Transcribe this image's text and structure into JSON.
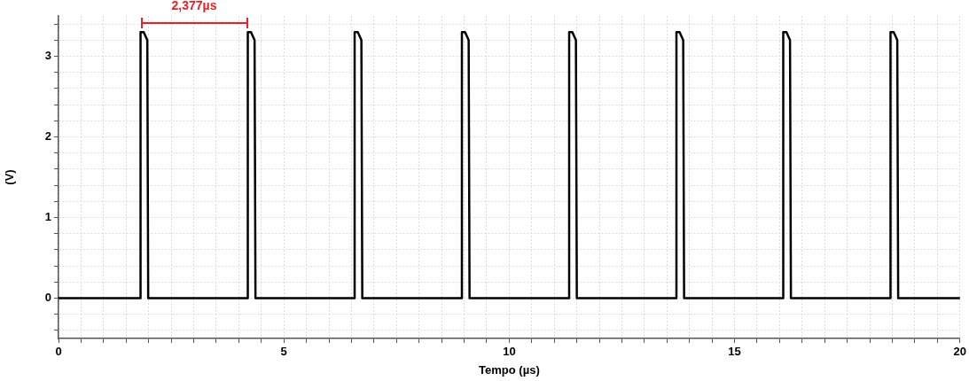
{
  "chart_data": {
    "type": "line",
    "xlabel": "Tempo (µs)",
    "ylabel": "(V)",
    "x": [
      0,
      1.82,
      1.82,
      1.89,
      1.97,
      1.99,
      4.2,
      4.2,
      4.27,
      4.35,
      4.37,
      6.57,
      6.57,
      6.64,
      6.72,
      6.74,
      8.95,
      8.95,
      9.02,
      9.1,
      9.12,
      11.33,
      11.33,
      11.4,
      11.48,
      11.5,
      13.71,
      13.71,
      13.78,
      13.86,
      13.88,
      16.08,
      16.08,
      16.15,
      16.23,
      16.25,
      18.46,
      18.46,
      18.53,
      18.61,
      18.63,
      20
    ],
    "series": [
      {
        "color": "#000000",
        "values": [
          0,
          0,
          3.3,
          3.3,
          3.2,
          0,
          0,
          3.3,
          3.3,
          3.2,
          0,
          0,
          3.3,
          3.3,
          3.2,
          0,
          0,
          3.3,
          3.3,
          3.2,
          0,
          0,
          3.3,
          3.3,
          3.2,
          0,
          0,
          3.3,
          3.3,
          3.2,
          0,
          0,
          3.3,
          3.3,
          3.2,
          0,
          0,
          3.3,
          3.3,
          3.2,
          0,
          0
        ]
      }
    ],
    "xlim": [
      0,
      20
    ],
    "ylim": [
      -0.5,
      3.5
    ],
    "xticks": [
      0,
      {
        "value": 0.5,
        "label": null
      },
      {
        "value": 1,
        "label": null
      },
      {
        "value": 1.5,
        "label": null
      },
      {
        "value": 2,
        "label": null
      },
      {
        "value": 2.5,
        "label": null
      },
      {
        "value": 3,
        "label": null
      },
      {
        "value": 3.5,
        "label": null
      },
      {
        "value": 4,
        "label": null
      },
      {
        "value": 4.5,
        "label": null
      },
      5,
      {
        "value": 5.5,
        "label": null
      },
      {
        "value": 6,
        "label": null
      },
      {
        "value": 6.5,
        "label": null
      },
      {
        "value": 7,
        "label": null
      },
      {
        "value": 7.5,
        "label": null
      },
      {
        "value": 8,
        "label": null
      },
      {
        "value": 8.5,
        "label": null
      },
      {
        "value": 9,
        "label": null
      },
      {
        "value": 9.5,
        "label": null
      },
      10,
      {
        "value": 10.5,
        "label": null
      },
      {
        "value": 11,
        "label": null
      },
      {
        "value": 11.5,
        "label": null
      },
      {
        "value": 12,
        "label": null
      },
      {
        "value": 12.5,
        "label": null
      },
      {
        "value": 13,
        "label": null
      },
      {
        "value": 13.5,
        "label": null
      },
      {
        "value": 14,
        "label": null
      },
      {
        "value": 14.5,
        "label": null
      },
      15,
      {
        "value": 15.5,
        "label": null
      },
      {
        "value": 16,
        "label": null
      },
      {
        "value": 16.5,
        "label": null
      },
      {
        "value": 17,
        "label": null
      },
      {
        "value": 17.5,
        "label": null
      },
      {
        "value": 18,
        "label": null
      },
      {
        "value": 18.5,
        "label": null
      },
      {
        "value": 19,
        "label": null
      },
      {
        "value": 19.5,
        "label": null
      },
      20
    ],
    "yticks": [
      {
        "value": -0.4,
        "label": null
      },
      {
        "value": -0.2,
        "label": null
      },
      0,
      {
        "value": 0.2,
        "label": null
      },
      {
        "value": 0.4,
        "label": null
      },
      {
        "value": 0.6,
        "label": null
      },
      {
        "value": 0.8,
        "label": null
      },
      1,
      {
        "value": 1.2,
        "label": null
      },
      {
        "value": 1.4,
        "label": null
      },
      {
        "value": 1.6,
        "label": null
      },
      {
        "value": 1.8,
        "label": null
      },
      2,
      {
        "value": 2.2,
        "label": null
      },
      {
        "value": 2.4,
        "label": null
      },
      {
        "value": 2.6,
        "label": null
      },
      {
        "value": 2.8,
        "label": null
      },
      3,
      {
        "value": 3.2,
        "label": null
      },
      {
        "value": 3.4,
        "label": null
      }
    ],
    "annotations": [
      "2,377µs"
    ],
    "grid": true,
    "legend": false,
    "marker": "none",
    "line_style": "solid"
  }
}
